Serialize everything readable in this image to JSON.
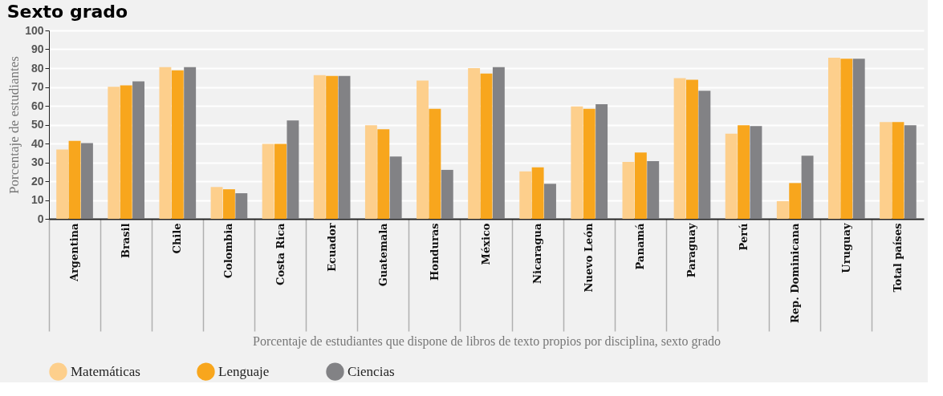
{
  "chart_data": {
    "type": "bar",
    "title": "Sexto grado",
    "xlabel": "Porcentaje de estudiantes que dispone de libros de texto propios por disciplina, sexto grado",
    "ylabel": "Porcentaje de estudiantes",
    "categories": [
      "Argentina",
      "Brasil",
      "Chile",
      "Colombia",
      "Costa Rica",
      "Ecuador",
      "Guatemala",
      "Honduras",
      "México",
      "Nicaragua",
      "Nuevo León",
      "Panamá",
      "Paraguay",
      "Perú",
      "Rep. Dominicana",
      "Uruguay",
      "Total países"
    ],
    "series": [
      {
        "name": "Matemáticas",
        "color": "#fdcf8c",
        "values": [
          36.8,
          70.1,
          80.5,
          16.9,
          39.8,
          76.3,
          49.7,
          73.4,
          80,
          25.2,
          59.7,
          30.2,
          74.7,
          45.2,
          9.4,
          85.5,
          51.4
        ]
      },
      {
        "name": "Lenguaje",
        "color": "#f8a61d",
        "values": [
          41.4,
          70.9,
          78.8,
          15.7,
          39.8,
          75.9,
          47.6,
          58.4,
          77.1,
          27.3,
          58.4,
          35.2,
          73.8,
          49.7,
          19,
          85,
          51.4
        ]
      },
      {
        "name": "Ciencias",
        "color": "#828285",
        "values": [
          40.2,
          73,
          80.5,
          13.6,
          52.2,
          75.9,
          33.1,
          26,
          80.5,
          18.6,
          60.9,
          30.6,
          68,
          49.3,
          33.5,
          85,
          49.7
        ]
      }
    ],
    "ylim": [
      0,
      100
    ],
    "yticks": [
      0,
      10,
      20,
      30,
      40,
      50,
      60,
      70,
      80,
      90,
      100
    ],
    "grid": "y",
    "legend": "bottom"
  }
}
